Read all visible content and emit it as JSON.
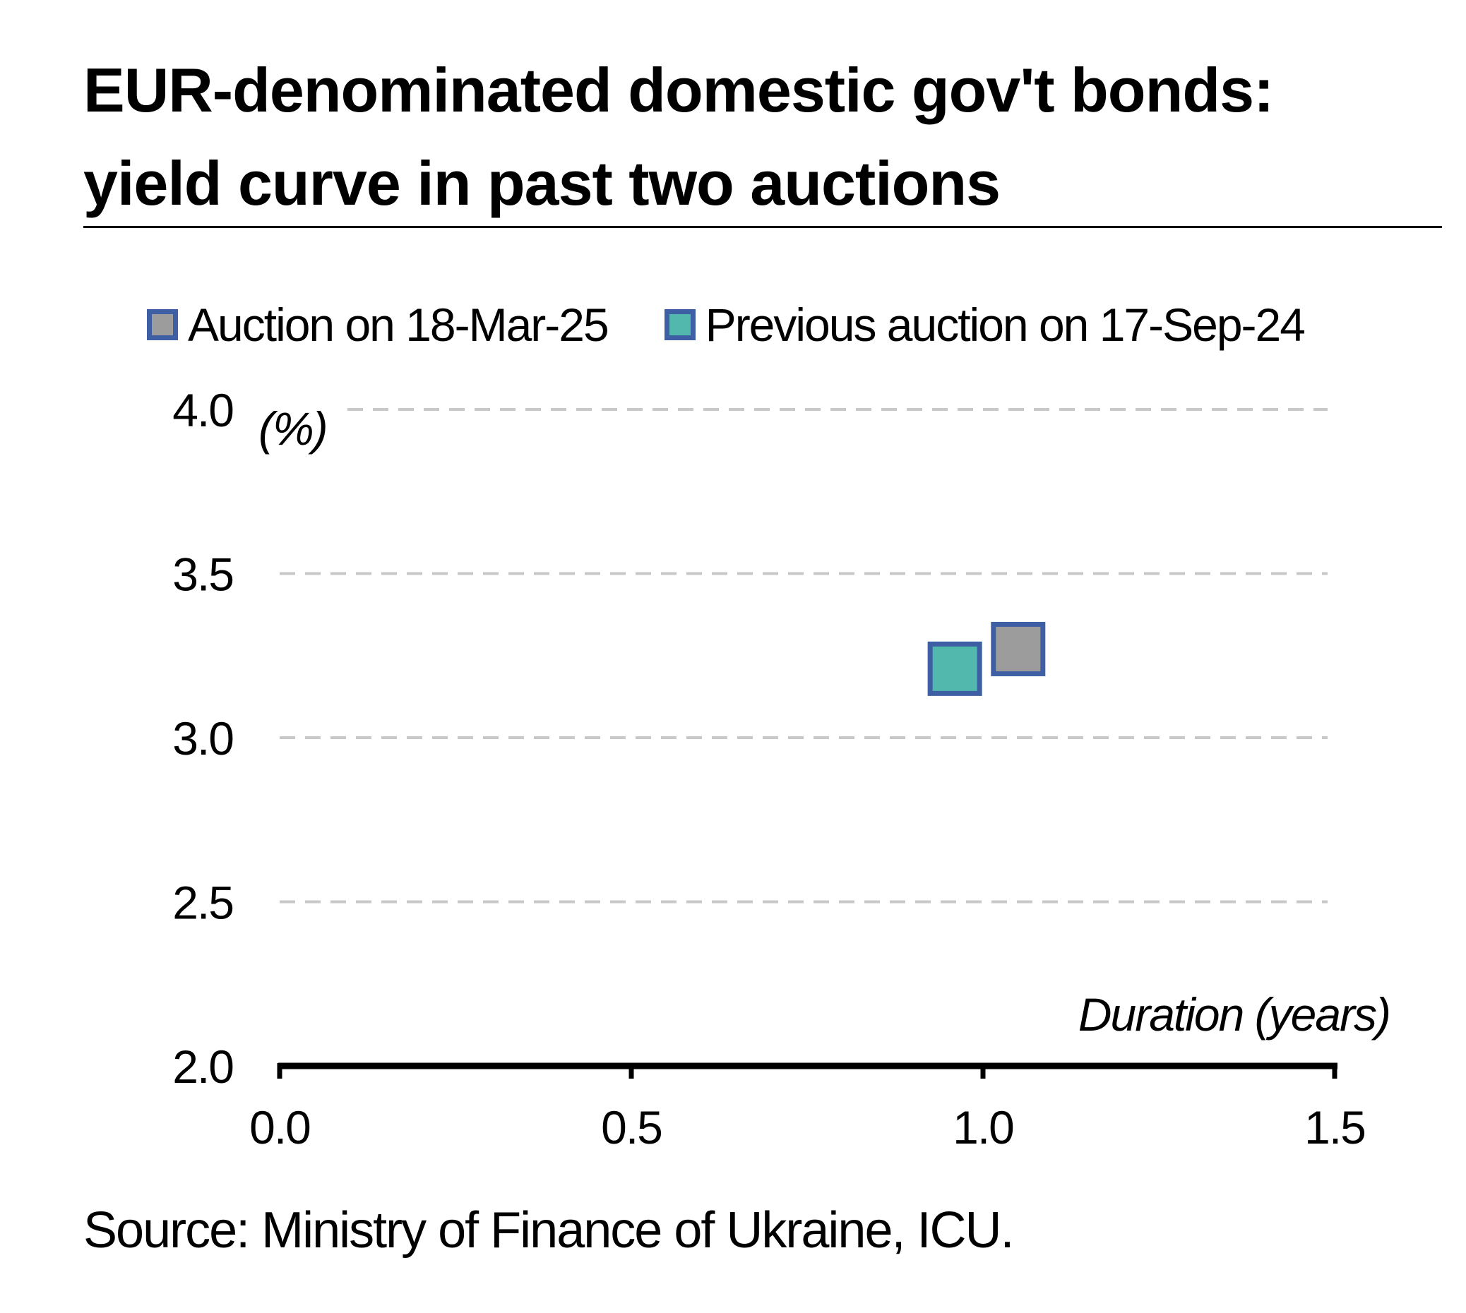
{
  "title_lines": [
    "EUR-denominated domestic gov't bonds:",
    "yield curve in past two auctions"
  ],
  "source": "Source: Ministry of Finance of Ukraine, ICU.",
  "colors": {
    "marker_border": "#3e5fa3",
    "series1_fill": "#9c9c9c",
    "series2_fill": "#52b8ae",
    "grid": "#c8c8c8",
    "axis": "#000000"
  },
  "chart_data": {
    "type": "scatter",
    "ylabel": "(%)",
    "xlabel": "Duration (years)",
    "xlim": [
      0.0,
      1.5
    ],
    "ylim": [
      2.0,
      4.0
    ],
    "x_ticks": [
      "0.0",
      "0.5",
      "1.0",
      "1.5"
    ],
    "y_ticks": [
      "2.0",
      "2.5",
      "3.0",
      "3.5",
      "4.0"
    ],
    "grid": "horizontal dashed",
    "legend_position": "top",
    "series": [
      {
        "name": "Auction on 18-Mar-25",
        "color": "#9c9c9c",
        "points": [
          {
            "x": 1.05,
            "y": 3.27
          }
        ]
      },
      {
        "name": "Previous auction on 17-Sep-24",
        "color": "#52b8ae",
        "points": [
          {
            "x": 0.96,
            "y": 3.21
          }
        ]
      }
    ]
  }
}
